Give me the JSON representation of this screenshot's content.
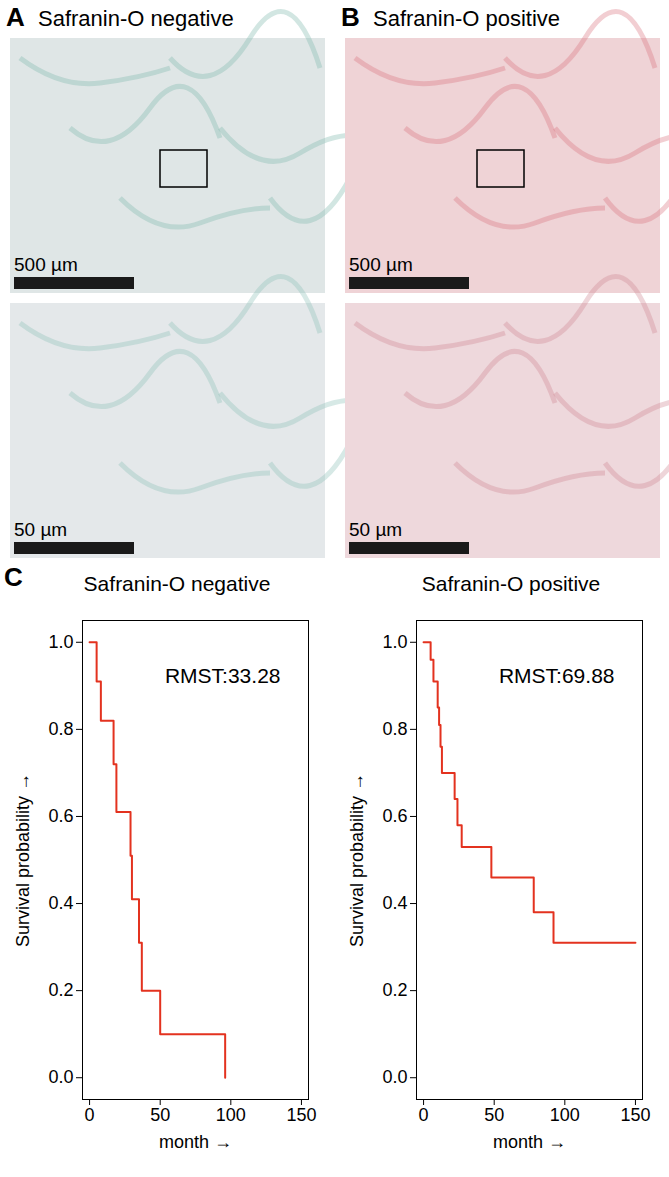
{
  "panels": [
    {
      "letter": "A",
      "title": "Safranin-O negative",
      "images": [
        {
          "scale_bar": "500 µm"
        },
        {
          "scale_bar": "50 µm"
        }
      ]
    },
    {
      "letter": "B",
      "title": "Safranin-O positive",
      "images": [
        {
          "scale_bar": "500 µm"
        },
        {
          "scale_bar": "50 µm"
        }
      ]
    }
  ],
  "chart_data": [
    {
      "letter": "C",
      "type": "line",
      "title": "Safranin-O negative",
      "annotation": "RMST:33.28",
      "x": [
        0,
        5,
        8,
        17,
        19,
        29,
        30,
        35,
        37,
        50,
        96
      ],
      "values": [
        1.0,
        0.91,
        0.82,
        0.72,
        0.61,
        0.51,
        0.41,
        0.31,
        0.2,
        0.1,
        0.0
      ],
      "color": "#e3321f",
      "line_style": "step",
      "xlabel": "month",
      "ylabel": "Survival probability",
      "xlim": [
        -5,
        155
      ],
      "xticks": [
        0,
        50,
        100,
        150
      ],
      "ylim": [
        -0.05,
        1.05
      ],
      "yticks": [
        {
          "value": 0,
          "label": "0.0"
        },
        {
          "value": 0.2,
          "label": "0.2"
        },
        {
          "value": 0.4,
          "label": "0.4"
        },
        {
          "value": 0.6,
          "label": "0.6"
        },
        {
          "value": 0.8,
          "label": "0.8"
        },
        {
          "value": 1,
          "label": "1.0"
        }
      ]
    },
    {
      "type": "line",
      "title": "Safranin-O positive",
      "annotation": "RMST:69.88",
      "x": [
        0,
        5,
        7,
        10,
        11,
        12,
        13,
        22,
        24,
        27,
        48,
        78,
        92,
        150
      ],
      "values": [
        1.0,
        0.96,
        0.91,
        0.85,
        0.81,
        0.76,
        0.7,
        0.64,
        0.58,
        0.53,
        0.46,
        0.38,
        0.31,
        0.31
      ],
      "color": "#e3321f",
      "line_style": "step",
      "xlabel": "month",
      "ylabel": "Survival probability",
      "xlim": [
        -5,
        155
      ],
      "xticks": [
        0,
        50,
        100,
        150
      ],
      "ylim": [
        -0.05,
        1.05
      ],
      "yticks": [
        {
          "value": 0,
          "label": "0.0"
        },
        {
          "value": 0.2,
          "label": "0.2"
        },
        {
          "value": 0.4,
          "label": "0.4"
        },
        {
          "value": 0.6,
          "label": "0.6"
        },
        {
          "value": 0.8,
          "label": "0.8"
        },
        {
          "value": 1,
          "label": "1.0"
        }
      ]
    }
  ]
}
